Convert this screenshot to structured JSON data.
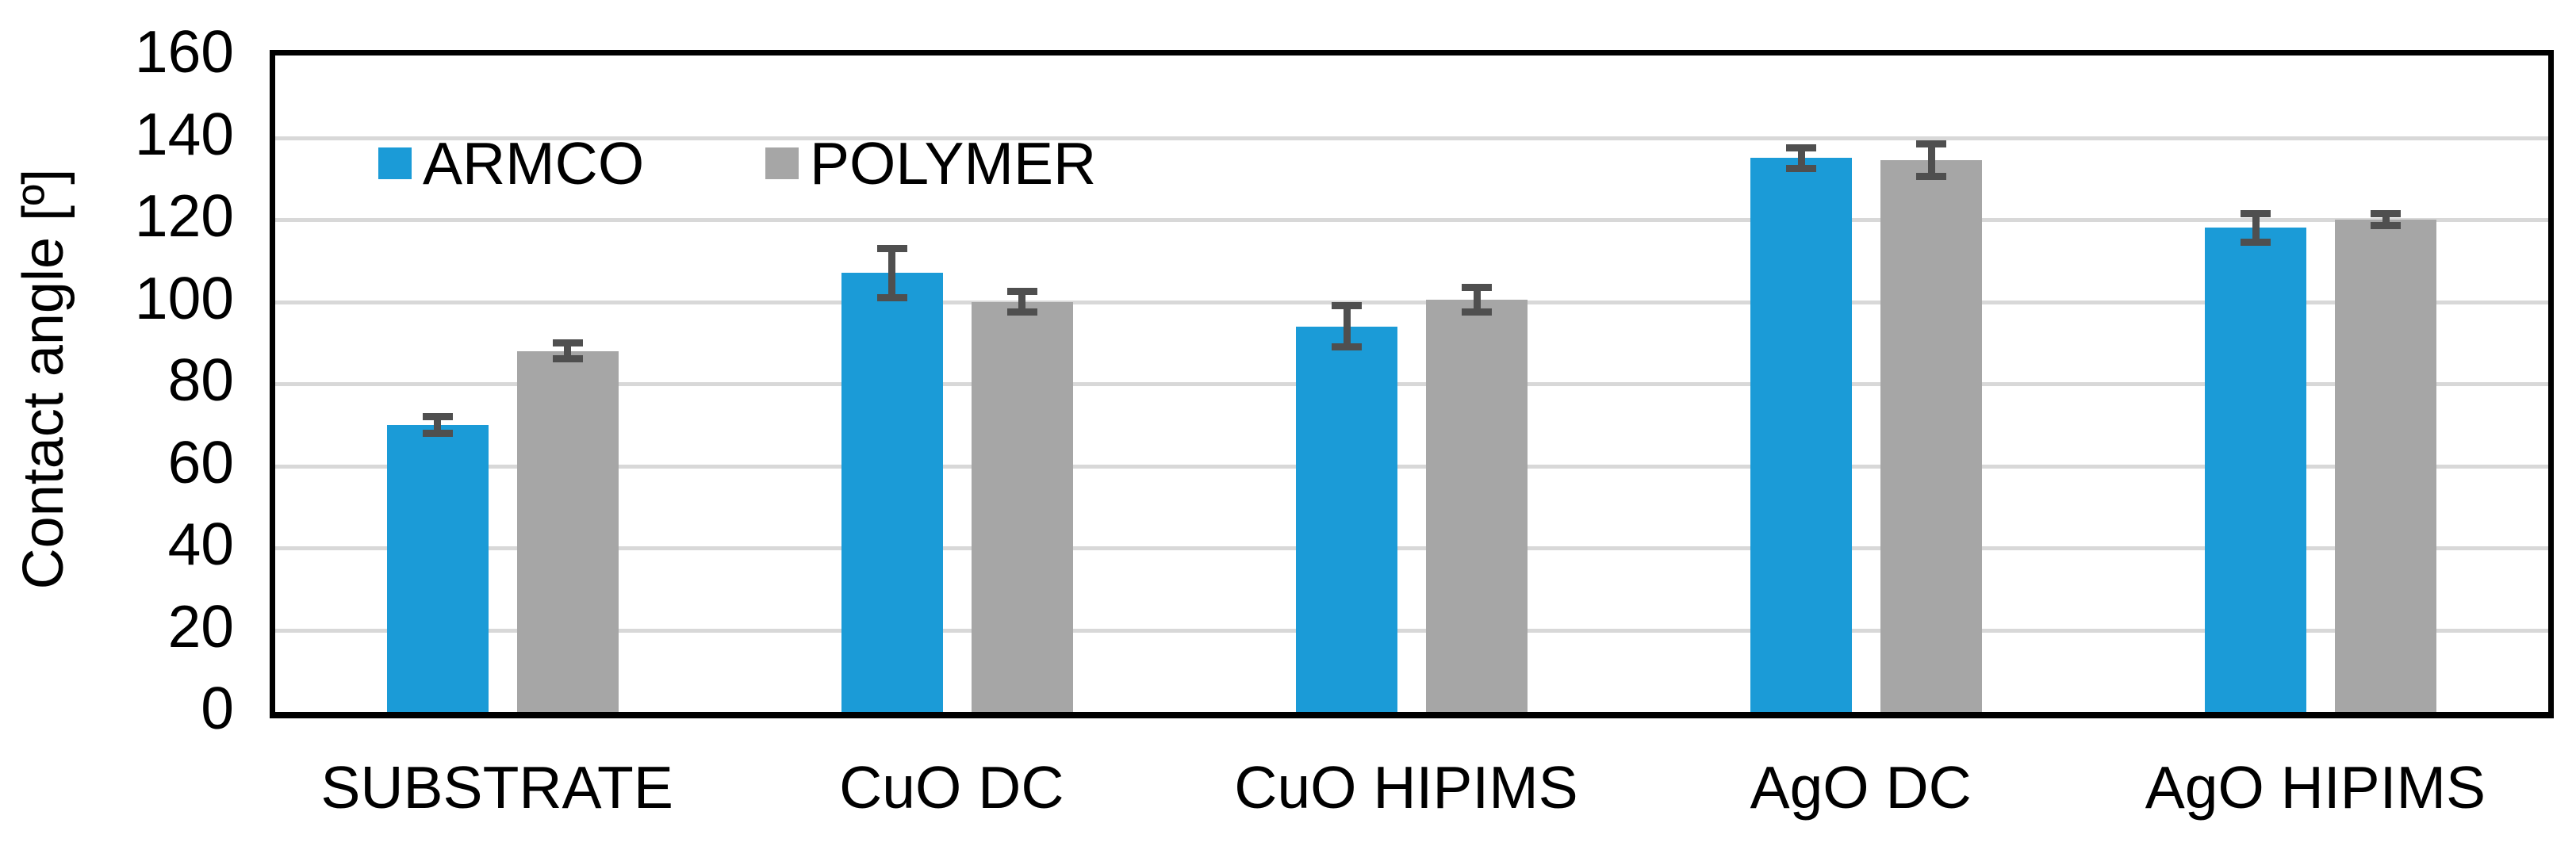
{
  "figure": {
    "background_color": "#ffffff"
  },
  "chart_data": {
    "type": "bar",
    "title": "",
    "categories": [
      "SUBSTRATE",
      "CuO DC",
      "CuO HIPIMS",
      "AgO DC",
      "AgO HIPIMS"
    ],
    "series": [
      {
        "name": "ARMCO",
        "color": "#1b9bd7",
        "values": [
          70,
          107,
          94,
          135,
          118
        ],
        "errors": [
          2,
          6,
          5,
          2.5,
          3.5
        ]
      },
      {
        "name": "POLYMER",
        "color": "#a6a6a6",
        "values": [
          88,
          100,
          100.5,
          134.5,
          120
        ],
        "errors": [
          2,
          2.5,
          3,
          4,
          1.5
        ]
      }
    ],
    "xlabel": "",
    "ylabel": "Contact angle [º]",
    "ylim": [
      0,
      160
    ],
    "ytick_step": 20,
    "yticks": [
      0,
      20,
      40,
      60,
      80,
      100,
      120,
      140,
      160
    ],
    "grid": true,
    "gridline_color": "#d8d8d8",
    "error_bar_color": "#4f4f4f",
    "axis_color": "#000000",
    "legend_position": "inside-top-left",
    "legend_entries": [
      "ARMCO",
      "POLYMER"
    ]
  }
}
